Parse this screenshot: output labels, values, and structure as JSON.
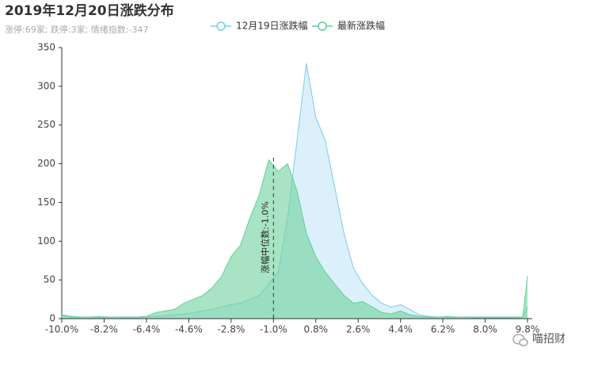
{
  "chart_data": {
    "type": "area",
    "title": "2019年12月20日涨跌分布",
    "subtitle": "涨停:69家; 跌停:3家; 情绪指数:-347",
    "x": [
      -10.0,
      -9.6,
      -9.2,
      -8.8,
      -8.4,
      -8.0,
      -7.6,
      -7.2,
      -6.8,
      -6.4,
      -6.0,
      -5.6,
      -5.2,
      -4.8,
      -4.4,
      -4.0,
      -3.6,
      -3.2,
      -2.8,
      -2.4,
      -2.0,
      -1.6,
      -1.2,
      -0.8,
      -0.4,
      0.0,
      0.4,
      0.8,
      1.2,
      1.6,
      2.0,
      2.4,
      2.8,
      3.2,
      3.6,
      4.0,
      4.4,
      4.8,
      5.2,
      5.6,
      6.0,
      6.4,
      6.8,
      7.2,
      7.6,
      8.0,
      8.4,
      8.8,
      9.2,
      9.6,
      9.8
    ],
    "series": [
      {
        "name": "12月19日涨跌幅",
        "color": "#7ecbea",
        "fill": "rgba(190,228,245,0.55)",
        "values": [
          5,
          2,
          2,
          2,
          3,
          2,
          2,
          1,
          2,
          2,
          3,
          4,
          5,
          6,
          8,
          10,
          12,
          15,
          18,
          20,
          25,
          30,
          45,
          60,
          130,
          230,
          330,
          260,
          230,
          170,
          110,
          65,
          45,
          30,
          20,
          15,
          18,
          12,
          5,
          3,
          2,
          3,
          2,
          2,
          1,
          1,
          1,
          1,
          1,
          2,
          15
        ]
      },
      {
        "name": "最新涨跌幅",
        "color": "#5fcf98",
        "fill": "rgba(110,210,155,0.6)",
        "values": [
          5,
          3,
          2,
          2,
          2,
          2,
          2,
          2,
          2,
          3,
          8,
          10,
          12,
          20,
          25,
          30,
          40,
          55,
          80,
          95,
          130,
          160,
          205,
          190,
          200,
          165,
          110,
          80,
          60,
          45,
          30,
          20,
          22,
          15,
          8,
          6,
          10,
          5,
          3,
          2,
          2,
          2,
          2,
          2,
          2,
          2,
          2,
          2,
          2,
          2,
          55
        ]
      }
    ],
    "median": {
      "value": -1.0,
      "label": "涨幅中位数:-1.0%"
    },
    "xlim": [
      -10,
      10
    ],
    "xticks": [
      {
        "value": -10.0,
        "label": "-10.0%"
      },
      {
        "value": -8.2,
        "label": "-8.2%"
      },
      {
        "value": -6.4,
        "label": "-6.4%"
      },
      {
        "value": -4.6,
        "label": "-4.6%"
      },
      {
        "value": -2.8,
        "label": "-2.8%"
      },
      {
        "value": -1.0,
        "label": "-1.0%"
      },
      {
        "value": 0.8,
        "label": "0.8%"
      },
      {
        "value": 2.6,
        "label": "2.6%"
      },
      {
        "value": 4.4,
        "label": "4.4%"
      },
      {
        "value": 6.2,
        "label": "6.2%"
      },
      {
        "value": 8.0,
        "label": "8.0%"
      },
      {
        "value": 9.8,
        "label": "9.8%"
      }
    ],
    "ylim": [
      0,
      350
    ],
    "yticks": [
      0,
      50,
      100,
      150,
      200,
      250,
      300,
      350
    ],
    "watermark": "喵招财"
  }
}
